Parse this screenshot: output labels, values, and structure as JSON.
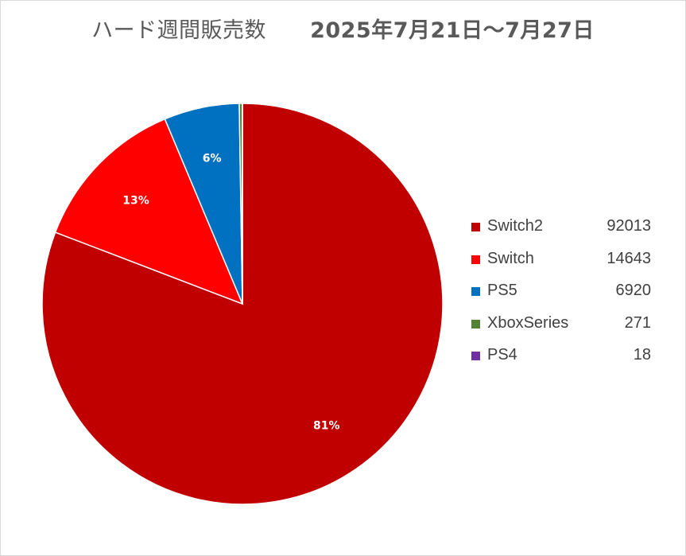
{
  "chart_data": {
    "type": "pie",
    "title": "ハード週間販売数",
    "subtitle": "2025年7月21日～7月27日",
    "categories": [
      "Switch2",
      "Switch",
      "PS5",
      "XboxSeries",
      "PS4"
    ],
    "values": [
      92013,
      14643,
      6920,
      271,
      18
    ],
    "value_labels": [
      "92013",
      "14643",
      "6920",
      "271",
      "18"
    ],
    "percent_labels": [
      "81%",
      "13%",
      "6%",
      "",
      ""
    ],
    "colors": [
      "#c00000",
      "#ff0000",
      "#0070c0",
      "#548235",
      "#7030a0"
    ],
    "legend_position": "right",
    "start_angle_deg": 0,
    "direction": "clockwise"
  }
}
